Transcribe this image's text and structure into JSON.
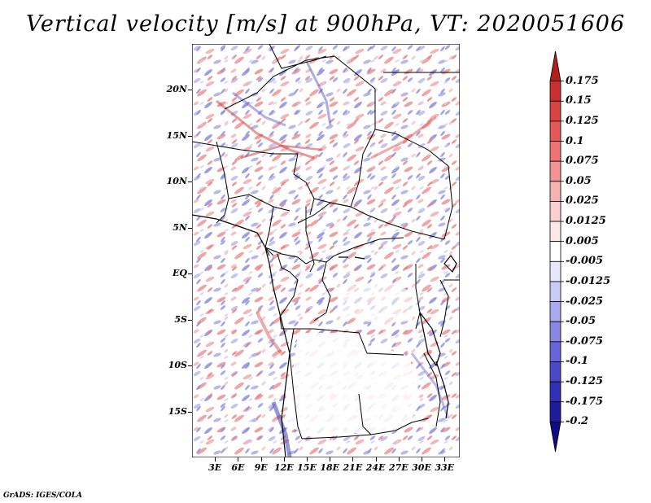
{
  "title": "Vertical velocity [m/s] at 900hPa, VT: 2020051606",
  "lat_labels": [
    "20N",
    "15N",
    "10N",
    "5N",
    "EQ",
    "5S",
    "10S",
    "15S"
  ],
  "lat_values": [
    20,
    15,
    10,
    5,
    0,
    -5,
    -10,
    -15
  ],
  "lon_labels": [
    "3E",
    "6E",
    "9E",
    "12E",
    "15E",
    "18E",
    "21E",
    "24E",
    "27E",
    "30E",
    "33E"
  ],
  "lon_values": [
    3,
    6,
    9,
    12,
    15,
    18,
    21,
    24,
    27,
    30,
    33
  ],
  "lat_range": [
    -20,
    25
  ],
  "lon_range": [
    0,
    35
  ],
  "colorbar": {
    "labels": [
      "0.175",
      "0.15",
      "0.125",
      "0.1",
      "0.075",
      "0.05",
      "0.025",
      "0.0125",
      "0.005",
      "-0.005",
      "-0.0125",
      "-0.025",
      "-0.05",
      "-0.075",
      "-0.1",
      "-0.125",
      "-0.175",
      "-0.2"
    ],
    "colors": [
      "#b01e1e",
      "#c83030",
      "#d84444",
      "#e65858",
      "#ee7474",
      "#f29494",
      "#f6b2b2",
      "#f9cfcf",
      "#fce8e8",
      "#ffffff",
      "#e6e6fc",
      "#cacaf6",
      "#aaaaee",
      "#8888e4",
      "#6666d8",
      "#4a4ac8",
      "#3030b4",
      "#1c1c9c",
      "#0e0e80"
    ]
  },
  "credit": "GrADS: IGES/COLA"
}
